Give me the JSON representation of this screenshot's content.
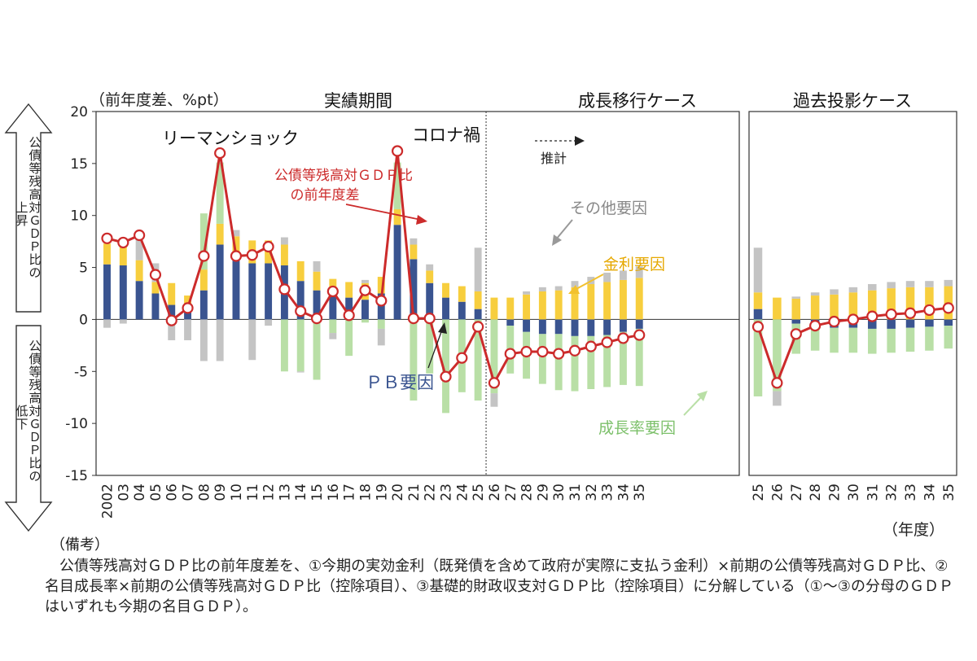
{
  "chart_data": {
    "type": "bar",
    "unit_label": "（前年度差、%pt）",
    "year_unit": "（年度）",
    "ylim": [
      -15,
      20
    ],
    "yticks": [
      20,
      15,
      10,
      5,
      0,
      -5,
      -10,
      -15
    ],
    "up_label": "公債等残高対ＧＤＰ比の上昇",
    "down_label": "公債等残高対ＧＤＰ比の低下",
    "section_titles": [
      "実績期間",
      "成長移行ケース",
      "過去投影ケース"
    ],
    "forecast_label": "推計",
    "annotations": {
      "lehman": "リーマンショック",
      "corona": "コロナ禍",
      "ratio_line": "公債等残高対ＧＤＰ比\nの前年度差",
      "other": "その他要因",
      "interest": "金利要因",
      "pb": "ＰＢ要因",
      "growth": "成長率要因"
    },
    "series_colors": {
      "pb": "#3a5490",
      "interest": "#f7ce3e",
      "growth": "#b9dfa6",
      "other": "#c4c4c4",
      "line": "#cc2b2b"
    },
    "panels": [
      {
        "name": "実績期間・成長移行ケース",
        "forecast_from_index": 23,
        "categories": [
          "2002",
          "03",
          "04",
          "05",
          "06",
          "07",
          "08",
          "09",
          "10",
          "11",
          "12",
          "13",
          "14",
          "15",
          "16",
          "17",
          "18",
          "19",
          "20",
          "21",
          "22",
          "23",
          "24",
          "25",
          "26",
          "27",
          "28",
          "29",
          "30",
          "31",
          "32",
          "33",
          "34",
          "35"
        ],
        "series": [
          {
            "name": "ＰＢ要因",
            "values": [
              5.3,
              5.2,
              3.7,
              2.5,
              1.4,
              0.8,
              2.8,
              7.2,
              5.8,
              5.4,
              5.4,
              5.2,
              3.7,
              2.8,
              2.2,
              2.1,
              1.9,
              2.5,
              9.1,
              5.8,
              3.5,
              2.1,
              1.7,
              1.0,
              0.0,
              -0.6,
              -1.2,
              -1.4,
              -1.4,
              -1.6,
              -1.6,
              -1.5,
              -1.2,
              -0.9
            ]
          },
          {
            "name": "金利要因",
            "values": [
              2.0,
              2.2,
              2.0,
              1.1,
              2.1,
              1.5,
              2.0,
              2.0,
              2.2,
              2.2,
              2.2,
              2.0,
              1.9,
              1.8,
              1.7,
              1.5,
              1.6,
              1.6,
              1.5,
              1.4,
              1.2,
              1.4,
              1.5,
              1.7,
              2.1,
              2.1,
              2.4,
              2.7,
              2.8,
              3.1,
              3.4,
              3.6,
              3.8,
              4.0
            ]
          },
          {
            "name": "成長率要因",
            "values": [
              0.0,
              0.0,
              0.0,
              0.0,
              0.0,
              0.0,
              5.4,
              5.9,
              0.0,
              0.0,
              0.0,
              -5.0,
              -5.0,
              -5.8,
              -1.3,
              -3.5,
              -0.3,
              -0.9,
              4.5,
              -7.8,
              -5.2,
              -9.0,
              -7.0,
              -7.8,
              -7.1,
              -4.6,
              -4.5,
              -4.8,
              -5.4,
              -5.3,
              -5.1,
              -5.0,
              -5.1,
              -5.5
            ]
          },
          {
            "name": "その他要因",
            "values": [
              -0.8,
              -0.4,
              2.0,
              1.8,
              -2.0,
              -2.0,
              -4.0,
              -4.0,
              0.6,
              -3.9,
              -0.6,
              0.7,
              -0.1,
              1.0,
              -0.6,
              0.0,
              0.3,
              -1.6,
              0.0,
              0.6,
              0.6,
              0.0,
              0.0,
              4.2,
              -1.3,
              0.0,
              0.3,
              0.4,
              0.4,
              0.6,
              0.7,
              0.9,
              0.9,
              1.1
            ]
          },
          {
            "name": "公債等残高対ＧＤＰ比の前年度差",
            "values": [
              7.8,
              7.4,
              8.1,
              4.3,
              -0.1,
              1.1,
              6.1,
              16.0,
              6.1,
              6.2,
              7.0,
              2.9,
              0.8,
              0.1,
              2.7,
              0.4,
              2.8,
              1.8,
              16.2,
              0.1,
              0.1,
              -5.5,
              -3.7,
              -0.7,
              -6.1,
              -3.3,
              -3.1,
              -3.1,
              -3.3,
              -3.0,
              -2.6,
              -2.2,
              -1.8,
              -1.5
            ]
          }
        ]
      },
      {
        "name": "過去投影ケース",
        "categories": [
          "25",
          "26",
          "27",
          "28",
          "29",
          "30",
          "31",
          "32",
          "33",
          "34",
          "35"
        ],
        "series": [
          {
            "name": "ＰＢ要因",
            "values": [
              1.0,
              0.0,
              -0.4,
              -0.5,
              -0.8,
              -0.8,
              -0.9,
              -0.9,
              -0.8,
              -0.7,
              -0.6
            ]
          },
          {
            "name": "金利要因",
            "values": [
              1.6,
              2.1,
              2.0,
              2.3,
              2.4,
              2.6,
              2.8,
              3.0,
              3.1,
              3.1,
              3.2
            ]
          },
          {
            "name": "成長率要因",
            "values": [
              -7.4,
              -6.9,
              -2.9,
              -2.5,
              -2.4,
              -2.4,
              -2.4,
              -2.3,
              -2.3,
              -2.3,
              -2.2
            ]
          },
          {
            "name": "その他要因",
            "values": [
              4.3,
              -1.4,
              0.2,
              0.3,
              0.5,
              0.5,
              0.6,
              0.6,
              0.6,
              0.6,
              0.6
            ]
          },
          {
            "name": "公債等残高対ＧＤＰ比の前年度差",
            "values": [
              -0.7,
              -6.1,
              -1.4,
              -0.6,
              -0.2,
              0.0,
              0.3,
              0.5,
              0.6,
              0.9,
              1.1
            ]
          }
        ]
      }
    ]
  },
  "notes": {
    "head": "（備考）",
    "body": "公債等残高対ＧＤＰ比の前年度差を、①今期の実効金利（既発債を含めて政府が実際に支払う金利）×前期の公債等残高対ＧＤＰ比、②名目成長率×前期の公債等残高対ＧＤＰ比（控除項目）、③基礎的財政収支対ＧＤＰ比（控除項目）に分解している（①～③の分母のＧＤＰはいずれも今期の名目ＧＤＰ）。"
  }
}
